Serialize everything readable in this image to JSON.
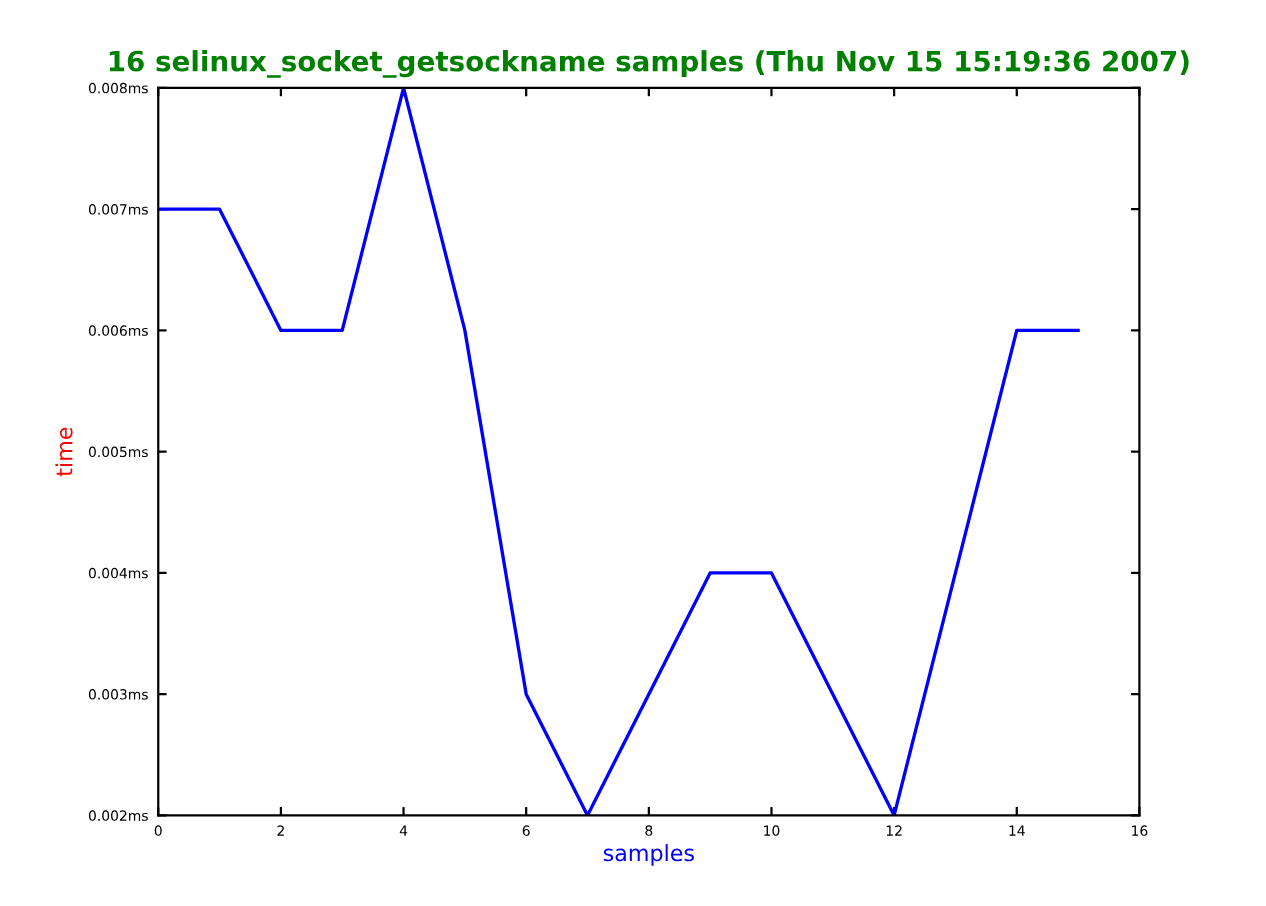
{
  "chart_data": {
    "type": "line",
    "title": "16 selinux_socket_getsockname samples (Thu Nov 15 15:19:36 2007)",
    "xlabel": "samples",
    "ylabel": "time",
    "x": [
      0,
      1,
      2,
      3,
      4,
      5,
      6,
      7,
      8,
      9,
      10,
      11,
      12,
      13,
      14,
      15
    ],
    "series": [
      {
        "color": "#0000ff",
        "values": [
          0.007,
          0.007,
          0.006,
          0.006,
          0.008,
          0.006,
          0.003,
          0.002,
          0.003,
          0.004,
          0.004,
          0.003,
          0.002,
          0.004,
          0.006,
          0.006
        ]
      }
    ],
    "xlim": [
      0,
      16
    ],
    "xticks": [
      0,
      2,
      4,
      6,
      8,
      10,
      12,
      14,
      16
    ],
    "ylim": [
      0.002,
      0.008
    ],
    "yticks": [
      {
        "value": 0.002,
        "label": "0.002ms"
      },
      {
        "value": 0.003,
        "label": "0.003ms"
      },
      {
        "value": 0.004,
        "label": "0.004ms"
      },
      {
        "value": 0.005,
        "label": "0.005ms"
      },
      {
        "value": 0.006,
        "label": "0.006ms"
      },
      {
        "value": 0.007,
        "label": "0.007ms"
      },
      {
        "value": 0.008,
        "label": "0.008ms"
      }
    ],
    "grid": false,
    "legend": false
  }
}
